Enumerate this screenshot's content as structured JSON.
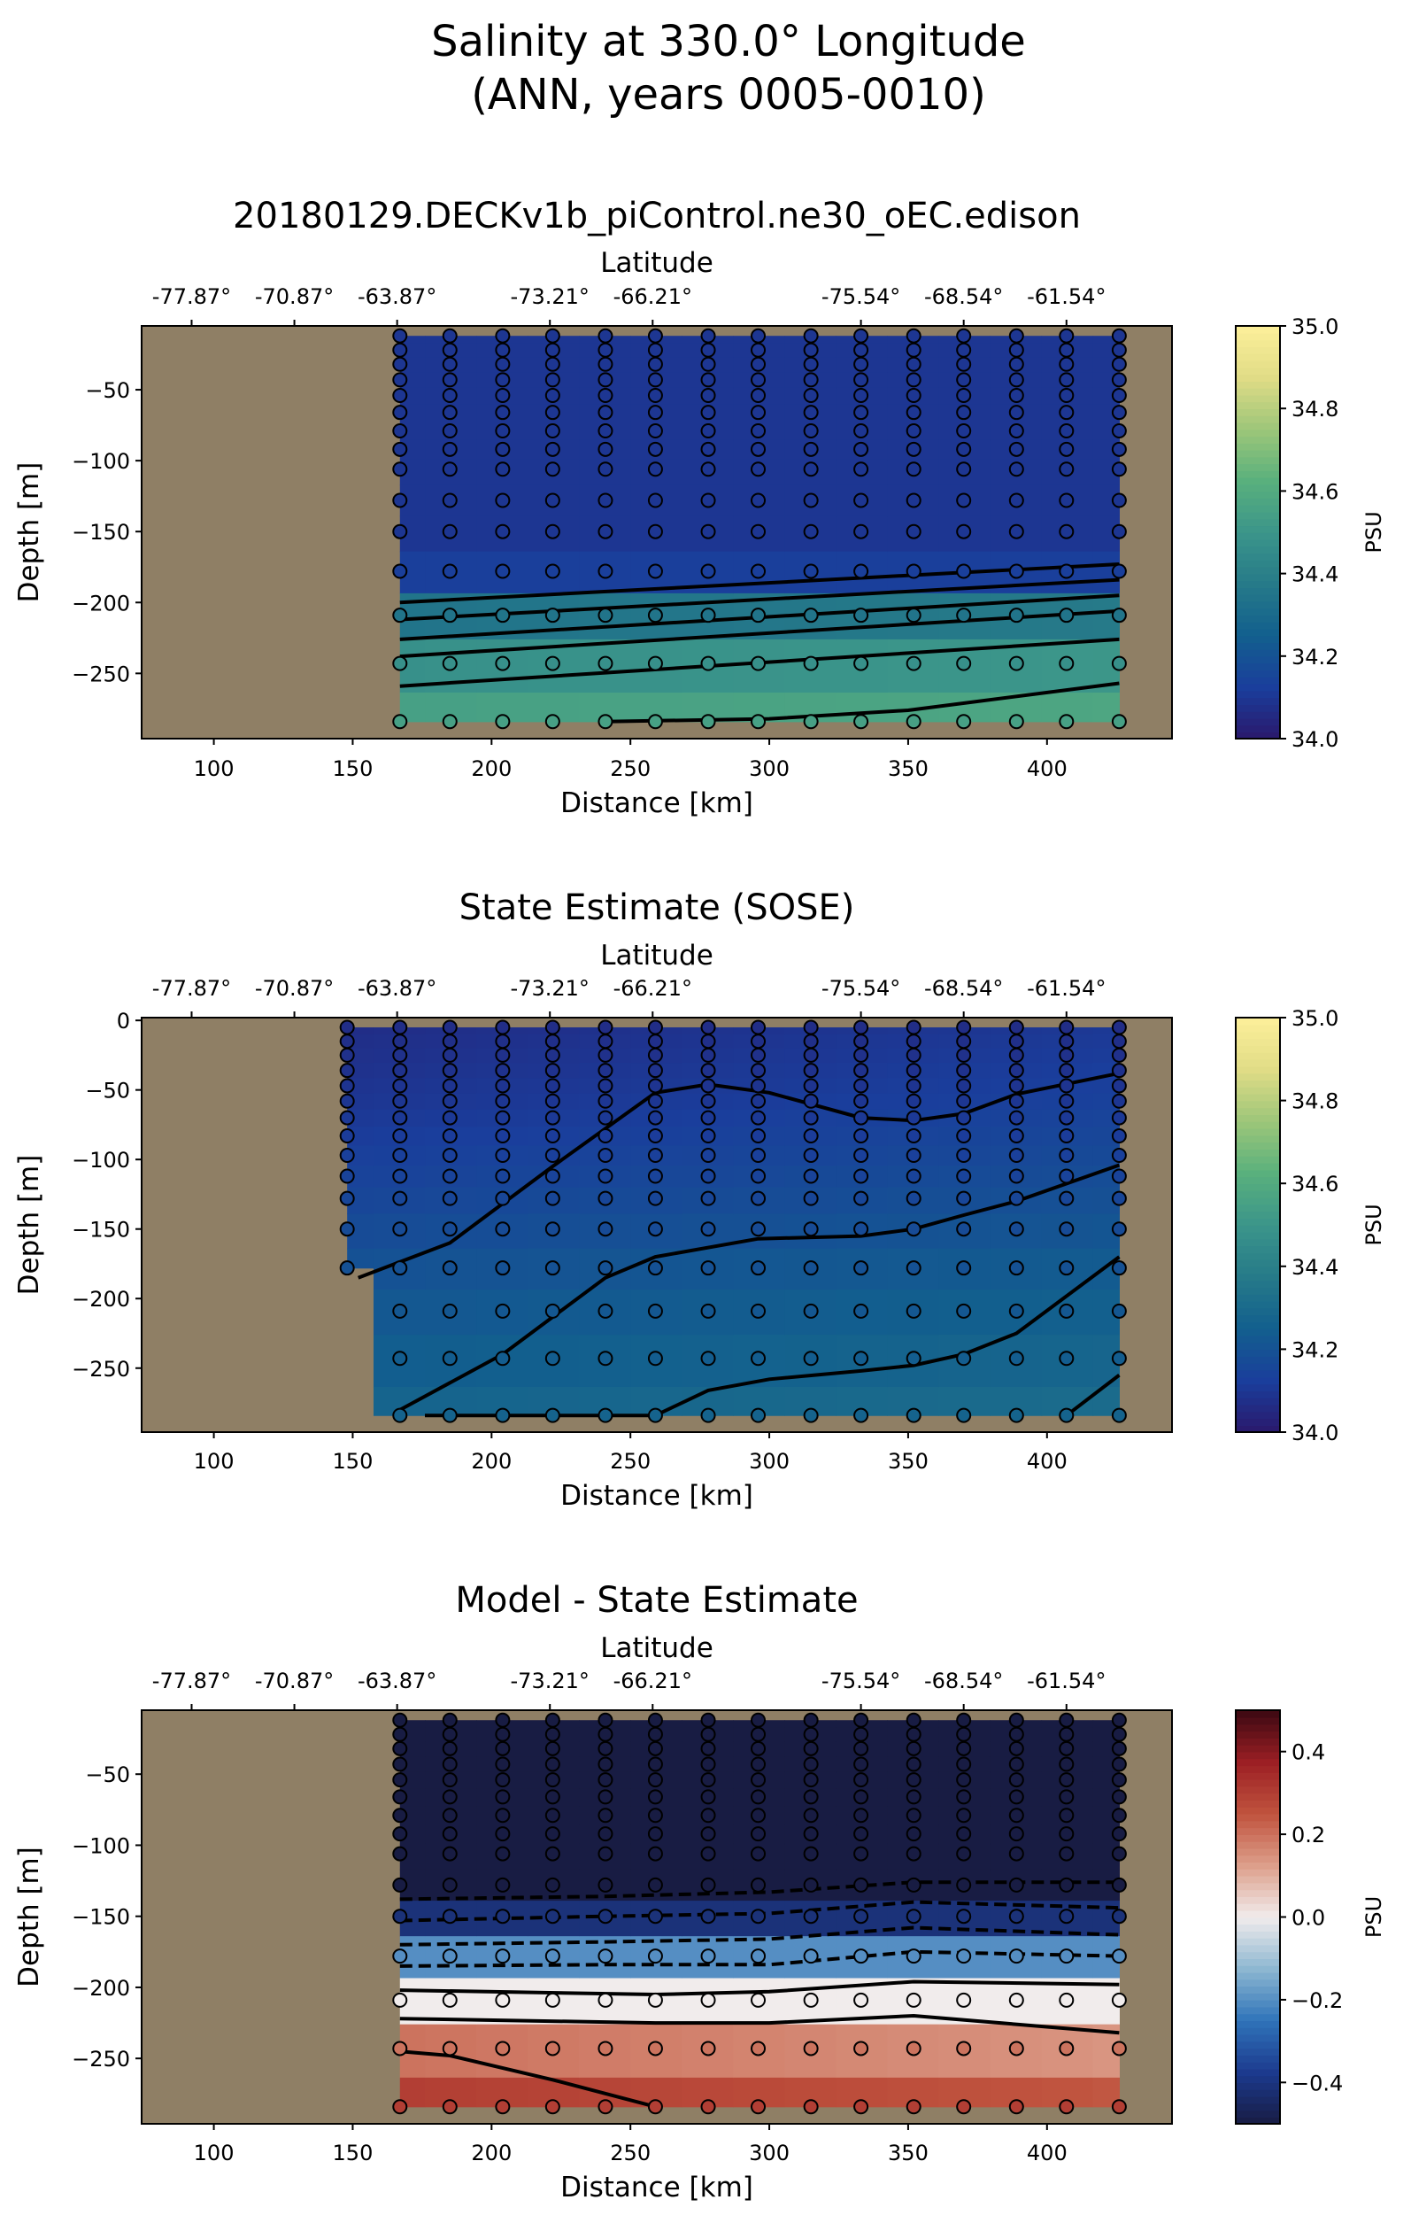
{
  "figure": {
    "title_line1": "Salinity at 330.0° Longitude",
    "title_line2": "(ANN, years 0005-0010)"
  },
  "colors": {
    "land": "#8f7f65",
    "contour": "#000000"
  },
  "chart_data": [
    {
      "type": "heatmap",
      "title": "20180129.DECKv1b_piControl.ne30_oEC.edison",
      "xlabel": "Distance [km]",
      "ylabel": "Depth [m]",
      "top_axis_label": "Latitude",
      "top_tick_labels": [
        "-77.87°",
        "-70.87°",
        "-63.87°",
        "-73.21°",
        "-66.21°",
        "-75.54°",
        "-68.54°",
        "-61.54°"
      ],
      "top_tick_distances": [
        92,
        129,
        166,
        221,
        258,
        333,
        370,
        407
      ],
      "xlim": [
        74,
        445
      ],
      "ylim": [
        -296,
        -5
      ],
      "xticks": [
        100,
        150,
        200,
        250,
        300,
        350,
        400
      ],
      "yticks": [
        -50,
        -100,
        -150,
        -200,
        -250
      ],
      "colorbar": {
        "colormap": "haline",
        "vmin": 34.0,
        "vmax": 35.0,
        "ticks": [
          "34.0",
          "34.2",
          "34.4",
          "34.6",
          "34.8",
          "35.0"
        ],
        "label": "PSU"
      },
      "data_extent": {
        "x_start": 167,
        "x_end": 426,
        "depth_top": -12,
        "depth_bottom": -284
      },
      "field_profile": [
        {
          "depth": -12,
          "value": 34.1
        },
        {
          "depth": -175,
          "value": 34.1
        },
        {
          "depth": -195,
          "value": 34.3
        },
        {
          "depth": -225,
          "value": 34.4
        },
        {
          "depth": -255,
          "value": 34.53
        },
        {
          "depth": -284,
          "value": 34.55
        }
      ],
      "column_x": [
        167,
        185,
        204,
        222,
        241,
        259,
        278,
        296,
        315,
        333,
        352,
        370,
        389,
        407,
        426
      ],
      "column_start_x": [
        167,
        185,
        204,
        222,
        241,
        259,
        278,
        296,
        315,
        333,
        352,
        370,
        389,
        407,
        426
      ],
      "marker_depths": [
        -12,
        -22,
        -32,
        -43,
        -54,
        -66,
        -79,
        -92,
        -106,
        -128,
        -150,
        -178,
        -209,
        -243,
        -284
      ],
      "contours": [
        {
          "style": "solid",
          "x": [
            167,
            426
          ],
          "y": [
            -200,
            -173
          ]
        },
        {
          "style": "solid",
          "x": [
            167,
            426
          ],
          "y": [
            -212,
            -184
          ]
        },
        {
          "style": "solid",
          "x": [
            167,
            426
          ],
          "y": [
            -226,
            -195
          ]
        },
        {
          "style": "solid",
          "x": [
            167,
            426
          ],
          "y": [
            -238,
            -206
          ]
        },
        {
          "style": "solid",
          "x": [
            167,
            426
          ],
          "y": [
            -259,
            -226
          ]
        },
        {
          "style": "solid",
          "x": [
            241,
            300,
            350,
            426
          ],
          "y": [
            -284,
            -282,
            -276,
            -257
          ]
        }
      ]
    },
    {
      "type": "heatmap",
      "title": "State Estimate (SOSE)",
      "xlabel": "Distance [km]",
      "ylabel": "Depth [m]",
      "top_axis_label": "Latitude",
      "top_tick_labels": [
        "-77.87°",
        "-70.87°",
        "-63.87°",
        "-73.21°",
        "-66.21°",
        "-75.54°",
        "-68.54°",
        "-61.54°"
      ],
      "top_tick_distances": [
        92,
        129,
        166,
        221,
        258,
        333,
        370,
        407
      ],
      "xlim": [
        74,
        445
      ],
      "ylim": [
        -296,
        2
      ],
      "xticks": [
        100,
        150,
        200,
        250,
        300,
        350,
        400
      ],
      "yticks": [
        0,
        -50,
        -100,
        -150,
        -200,
        -250
      ],
      "colorbar": {
        "colormap": "haline",
        "vmin": 34.0,
        "vmax": 35.0,
        "ticks": [
          "34.0",
          "34.2",
          "34.4",
          "34.6",
          "34.8",
          "35.0"
        ],
        "label": "PSU"
      },
      "data_extent": {
        "x_start": 148,
        "x_end": 426,
        "depth_top": -5,
        "depth_bottom": -284
      },
      "field_profile": [
        {
          "depth": -5,
          "value": 34.07
        },
        {
          "depth": -60,
          "value": 34.1
        },
        {
          "depth": -120,
          "value": 34.15
        },
        {
          "depth": -180,
          "value": 34.2
        },
        {
          "depth": -240,
          "value": 34.24
        },
        {
          "depth": -284,
          "value": 34.27
        }
      ],
      "column_x": [
        148,
        167,
        185,
        204,
        222,
        241,
        259,
        278,
        296,
        315,
        333,
        352,
        370,
        389,
        407,
        426
      ],
      "column_start_x": [
        148,
        167,
        185,
        204,
        222,
        241,
        259,
        278,
        296,
        315,
        333,
        352,
        370,
        389,
        407,
        426
      ],
      "column_bottom_depth": [
        -178,
        -284,
        -284,
        -284,
        -284,
        -284,
        -284,
        -284,
        -284,
        -284,
        -284,
        -284,
        -284,
        -284,
        -284,
        -284
      ],
      "marker_depths": [
        -5,
        -15,
        -25,
        -36,
        -47,
        -58,
        -70,
        -83,
        -97,
        -112,
        -128,
        -150,
        -178,
        -209,
        -243,
        -284
      ],
      "contours": [
        {
          "style": "solid",
          "x": [
            152,
            185,
            222,
            259,
            278,
            300,
            333,
            352,
            370,
            389,
            426
          ],
          "y": [
            -185,
            -160,
            -105,
            -52,
            -46,
            -52,
            -70,
            -72,
            -67,
            -53,
            -38
          ]
        },
        {
          "style": "solid",
          "x": [
            167,
            204,
            241,
            259,
            296,
            333,
            352,
            370,
            389,
            426
          ],
          "y": [
            -280,
            -240,
            -185,
            -170,
            -157,
            -155,
            -150,
            -140,
            -130,
            -104
          ]
        },
        {
          "style": "solid",
          "x": [
            176,
            204,
            259,
            278,
            300,
            333,
            352,
            370,
            389,
            426
          ],
          "y": [
            -284,
            -284,
            -284,
            -266,
            -258,
            -252,
            -248,
            -240,
            -225,
            -170
          ]
        },
        {
          "style": "solid",
          "x": [
            407,
            426
          ],
          "y": [
            -284,
            -255
          ]
        }
      ]
    },
    {
      "type": "heatmap",
      "title": "Model - State Estimate",
      "xlabel": "Distance [km]",
      "ylabel": "Depth [m]",
      "top_axis_label": "Latitude",
      "top_tick_labels": [
        "-77.87°",
        "-70.87°",
        "-63.87°",
        "-73.21°",
        "-66.21°",
        "-75.54°",
        "-68.54°",
        "-61.54°"
      ],
      "top_tick_distances": [
        92,
        129,
        166,
        221,
        258,
        333,
        370,
        407
      ],
      "xlim": [
        74,
        445
      ],
      "ylim": [
        -296,
        -5
      ],
      "xticks": [
        100,
        150,
        200,
        250,
        300,
        350,
        400
      ],
      "yticks": [
        -50,
        -100,
        -150,
        -200,
        -250
      ],
      "colorbar": {
        "colormap": "balance",
        "vmin": -0.5,
        "vmax": 0.5,
        "ticks": [
          "−0.4",
          "−0.2",
          "0.0",
          "0.2",
          "0.4"
        ],
        "tick_values": [
          -0.4,
          -0.2,
          0.0,
          0.2,
          0.4
        ],
        "label": "PSU"
      },
      "data_extent": {
        "x_start": 167,
        "x_end": 426,
        "depth_top": -12,
        "depth_bottom": -284
      },
      "field_profile": [
        {
          "depth": -12,
          "value": -0.5
        },
        {
          "depth": -135,
          "value": -0.5
        },
        {
          "depth": -155,
          "value": -0.38
        },
        {
          "depth": -178,
          "value": -0.2
        },
        {
          "depth": -195,
          "value": -0.05
        },
        {
          "depth": -209,
          "value": 0.0
        },
        {
          "depth": -230,
          "value": 0.12
        },
        {
          "depth": -255,
          "value": 0.27
        },
        {
          "depth": -284,
          "value": 0.3
        }
      ],
      "column_x": [
        167,
        185,
        204,
        222,
        241,
        259,
        278,
        296,
        315,
        333,
        352,
        370,
        389,
        407,
        426
      ],
      "column_start_x": [
        167,
        185,
        204,
        222,
        241,
        259,
        278,
        296,
        315,
        333,
        352,
        370,
        389,
        407,
        426
      ],
      "marker_depths": [
        -12,
        -22,
        -32,
        -43,
        -54,
        -66,
        -79,
        -92,
        -106,
        -128,
        -150,
        -178,
        -209,
        -243,
        -284
      ],
      "contours": [
        {
          "style": "dashed",
          "x": [
            167,
            241,
            300,
            352,
            426
          ],
          "y": [
            -138,
            -136,
            -133,
            -126,
            -126
          ]
        },
        {
          "style": "dashed",
          "x": [
            167,
            241,
            300,
            352,
            426
          ],
          "y": [
            -153,
            -150,
            -148,
            -140,
            -144
          ]
        },
        {
          "style": "dashed",
          "x": [
            167,
            241,
            300,
            352,
            426
          ],
          "y": [
            -170,
            -168,
            -166,
            -158,
            -163
          ]
        },
        {
          "style": "dashed",
          "x": [
            167,
            241,
            300,
            352,
            426
          ],
          "y": [
            -185,
            -184,
            -184,
            -175,
            -178
          ]
        },
        {
          "style": "solid",
          "x": [
            167,
            259,
            300,
            352,
            426
          ],
          "y": [
            -202,
            -205,
            -203,
            -196,
            -198
          ]
        },
        {
          "style": "solid",
          "x": [
            167,
            259,
            300,
            352,
            426
          ],
          "y": [
            -222,
            -225,
            -225,
            -220,
            -232
          ]
        },
        {
          "style": "solid",
          "x": [
            167,
            185,
            222,
            259
          ],
          "y": [
            -245,
            -248,
            -265,
            -284
          ]
        }
      ]
    }
  ]
}
